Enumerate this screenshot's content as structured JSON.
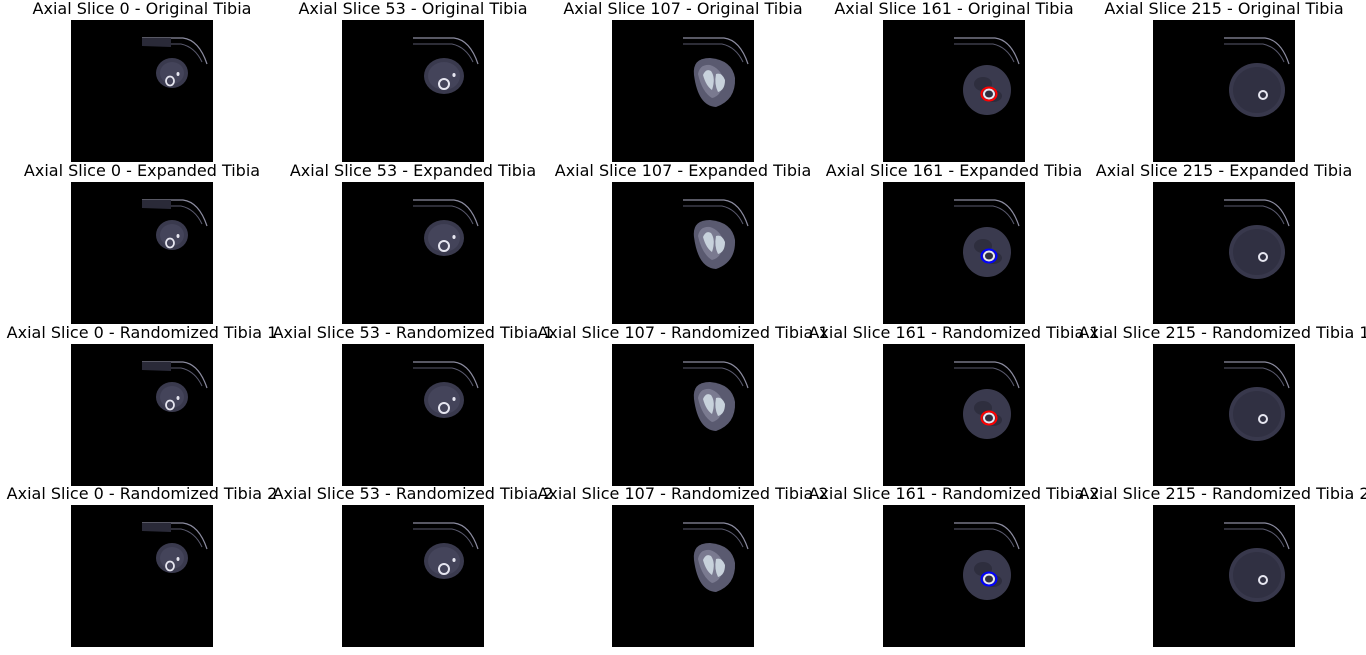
{
  "figure": {
    "background": "#ffffff",
    "image_background": "#000000",
    "tissue_color": "#3a3a4e",
    "bone_color": "#e6e6f0",
    "contour_colors": {
      "red": "#ff0000",
      "blue": "#0000ff"
    }
  },
  "rows": [
    {
      "panels": [
        {
          "title": "Axial Slice 0 - Original Tibia",
          "slice": 0,
          "contour": ""
        },
        {
          "title": "Axial Slice 53 - Original Tibia",
          "slice": 53,
          "contour": ""
        },
        {
          "title": "Axial Slice 107 - Original Tibia",
          "slice": 107,
          "contour": ""
        },
        {
          "title": "Axial Slice 161 - Original Tibia",
          "slice": 161,
          "contour": "red"
        },
        {
          "title": "Axial Slice 215 - Original Tibia",
          "slice": 215,
          "contour": ""
        }
      ]
    },
    {
      "panels": [
        {
          "title": "Axial Slice 0 - Expanded Tibia",
          "slice": 0,
          "contour": ""
        },
        {
          "title": "Axial Slice 53 - Expanded Tibia",
          "slice": 53,
          "contour": ""
        },
        {
          "title": "Axial Slice 107 - Expanded Tibia",
          "slice": 107,
          "contour": ""
        },
        {
          "title": "Axial Slice 161 - Expanded Tibia",
          "slice": 161,
          "contour": "blue"
        },
        {
          "title": "Axial Slice 215 - Expanded Tibia",
          "slice": 215,
          "contour": ""
        }
      ]
    },
    {
      "panels": [
        {
          "title": "Axial Slice 0 - Randomized Tibia 1",
          "slice": 0,
          "contour": ""
        },
        {
          "title": "Axial Slice 53 - Randomized Tibia 1",
          "slice": 53,
          "contour": ""
        },
        {
          "title": "Axial Slice 107 - Randomized Tibia 1",
          "slice": 107,
          "contour": ""
        },
        {
          "title": "Axial Slice 161 - Randomized Tibia 1",
          "slice": 161,
          "contour": "red"
        },
        {
          "title": "Axial Slice 215 - Randomized Tibia 1",
          "slice": 215,
          "contour": ""
        }
      ]
    },
    {
      "panels": [
        {
          "title": "Axial Slice 0 - Randomized Tibia 2",
          "slice": 0,
          "contour": ""
        },
        {
          "title": "Axial Slice 53 - Randomized Tibia 2",
          "slice": 53,
          "contour": ""
        },
        {
          "title": "Axial Slice 107 - Randomized Tibia 2",
          "slice": 107,
          "contour": ""
        },
        {
          "title": "Axial Slice 161 - Randomized Tibia 2",
          "slice": 161,
          "contour": "blue"
        },
        {
          "title": "Axial Slice 215 - Randomized Tibia 2",
          "slice": 215,
          "contour": ""
        }
      ]
    }
  ]
}
